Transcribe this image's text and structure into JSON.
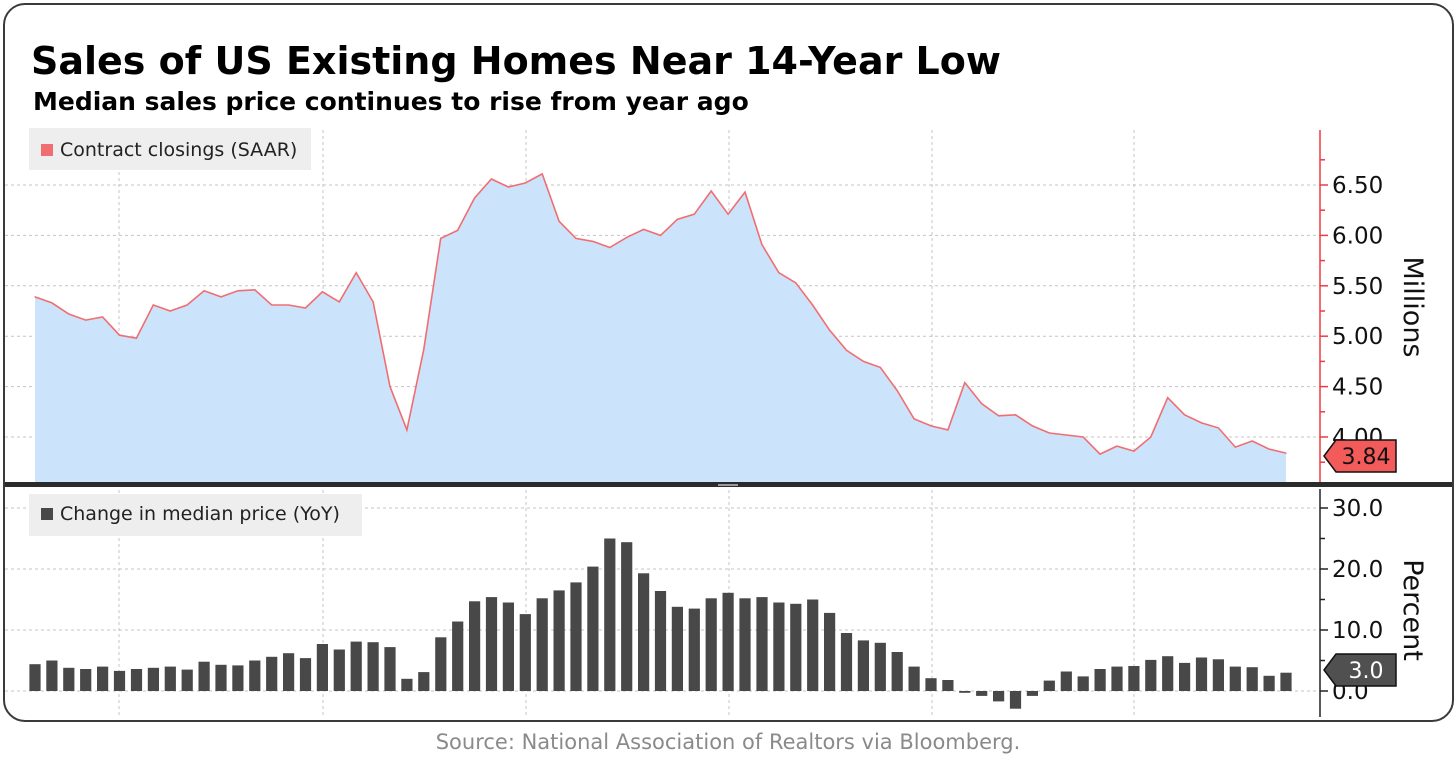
{
  "title": "Sales of US Existing Homes Near 14-Year Low",
  "subtitle": "Median sales price continues to rise from year ago",
  "source": "Source: National Association of Realtors via Bloomberg.",
  "colors": {
    "area_fill": "#cce4fb",
    "area_line": "#f06e72",
    "bars": "#484848",
    "top_axis": "#ee3b44",
    "last_value_top": "#f35a5a",
    "last_value_bottom": "#505050",
    "grid": "#c4c4c4"
  },
  "chart_data": [
    {
      "type": "area",
      "legend": "Contract closings (SAAR)",
      "legend_placement": "top-left",
      "ylabel": "Millions",
      "y_axis_side": "right",
      "yticks": [
        "4.00",
        "4.50",
        "5.00",
        "5.50",
        "6.00",
        "6.50"
      ],
      "ylim": [
        3.5,
        7.0
      ],
      "grid": true,
      "last_value_label": "3.84",
      "values": [
        5.39,
        5.33,
        5.22,
        5.16,
        5.19,
        5.01,
        4.98,
        5.31,
        5.25,
        5.31,
        5.45,
        5.39,
        5.45,
        5.46,
        5.31,
        5.31,
        5.28,
        5.44,
        5.34,
        5.63,
        5.34,
        4.5,
        4.07,
        4.87,
        5.97,
        6.05,
        6.37,
        6.56,
        6.48,
        6.52,
        6.61,
        6.14,
        5.97,
        5.94,
        5.88,
        5.98,
        6.06,
        6.0,
        6.16,
        6.21,
        6.44,
        6.21,
        6.43,
        5.91,
        5.63,
        5.53,
        5.31,
        5.06,
        4.86,
        4.75,
        4.69,
        4.46,
        4.18,
        4.11,
        4.07,
        4.54,
        4.33,
        4.21,
        4.22,
        4.11,
        4.04,
        4.02,
        4.0,
        3.83,
        3.91,
        3.86,
        4.0,
        4.39,
        4.22,
        4.14,
        4.09,
        3.9,
        3.96,
        3.88,
        3.84
      ]
    },
    {
      "type": "bar",
      "legend": "Change in median price (YoY)",
      "legend_placement": "top-left",
      "ylabel": "Percent",
      "y_axis_side": "right",
      "yticks": [
        "0.0",
        "10.0",
        "20.0",
        "30.0"
      ],
      "ylim": [
        -3,
        32
      ],
      "grid": true,
      "last_value_label": "3.0",
      "values": [
        4.4,
        5.0,
        3.8,
        3.6,
        4.0,
        3.3,
        3.6,
        3.8,
        4.0,
        3.5,
        4.8,
        4.3,
        4.2,
        5.0,
        5.6,
        6.2,
        5.4,
        7.7,
        6.8,
        8.1,
        8.0,
        7.2,
        2.0,
        3.1,
        8.8,
        11.4,
        14.7,
        15.4,
        14.5,
        12.6,
        15.2,
        16.5,
        17.8,
        20.4,
        25.0,
        24.4,
        19.3,
        16.4,
        13.8,
        13.5,
        15.2,
        16.1,
        15.2,
        15.4,
        14.5,
        14.3,
        15.0,
        12.8,
        9.5,
        8.3,
        7.9,
        6.4,
        4.0,
        2.1,
        1.8,
        -0.3,
        -0.8,
        -1.7,
        -2.9,
        -0.8,
        1.7,
        3.2,
        2.4,
        3.6,
        4.0,
        4.1,
        5.1,
        5.7,
        4.6,
        5.5,
        5.2,
        4.0,
        3.9,
        2.5,
        3.0
      ]
    }
  ]
}
